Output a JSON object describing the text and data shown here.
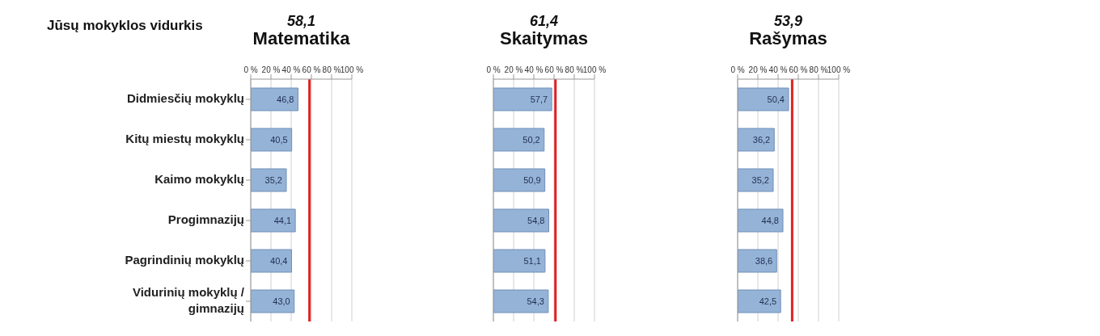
{
  "chart_data": [
    {
      "type": "bar",
      "orientation": "horizontal",
      "title": "Matematika",
      "subtitle": "58,1",
      "annotations": [
        "Jūsų mokyklos vidurkis"
      ],
      "categories": [
        "Didmiesčių mokyklų",
        "Kitų miestų mokyklų",
        "Kaimo mokyklų",
        "Progimnazijų",
        "Pagrindinių mokyklų",
        "Vidurinių mokyklų / gimnazijų"
      ],
      "values": [
        46.8,
        40.5,
        35.2,
        44.1,
        40.4,
        43.0
      ],
      "value_labels": [
        "46,8",
        "40,5",
        "35,2",
        "44,1",
        "40,4",
        "43,0"
      ],
      "color": "#95b3d7",
      "xlim": [
        0,
        100
      ],
      "xticks": [
        {
          "value": 0,
          "label": "0 %"
        },
        {
          "value": 20,
          "label": "20 %"
        },
        {
          "value": 40,
          "label": "40 %"
        },
        {
          "value": 60,
          "label": "60 %"
        },
        {
          "value": 80,
          "label": "80 %"
        },
        {
          "value": 100,
          "label": "100 %"
        }
      ],
      "grid": "x",
      "ref_lines": [
        {
          "axis": "x",
          "value": 58.1,
          "color": "#e02020"
        }
      ]
    },
    {
      "type": "bar",
      "orientation": "horizontal",
      "title": "Skaitymas",
      "subtitle": "61,4",
      "tick_labels": "x",
      "categories": [
        null,
        null,
        null,
        null,
        null,
        null
      ],
      "values": [
        57.7,
        50.2,
        50.9,
        54.8,
        51.1,
        54.3
      ],
      "value_labels": [
        "57,7",
        "50,2",
        "50,9",
        "54,8",
        "51,1",
        "54,3"
      ],
      "color": "#95b3d7",
      "xlim": [
        0,
        100
      ],
      "xticks": [
        {
          "value": 0,
          "label": "0 %"
        },
        {
          "value": 20,
          "label": "20 %"
        },
        {
          "value": 40,
          "label": "40 %"
        },
        {
          "value": 60,
          "label": "60 %"
        },
        {
          "value": 80,
          "label": "80 %"
        },
        {
          "value": 100,
          "label": "100 %"
        }
      ],
      "grid": "x",
      "ref_lines": [
        {
          "axis": "x",
          "value": 61.4,
          "color": "#e02020"
        }
      ]
    },
    {
      "type": "bar",
      "orientation": "horizontal",
      "title": "Rašymas",
      "subtitle": "53,9",
      "tick_labels": "x",
      "categories": [
        null,
        null,
        null,
        null,
        null,
        null
      ],
      "values": [
        50.4,
        36.2,
        35.2,
        44.8,
        38.6,
        42.5
      ],
      "value_labels": [
        "50,4",
        "36,2",
        "35,2",
        "44,8",
        "38,6",
        "42,5"
      ],
      "color": "#95b3d7",
      "xlim": [
        0,
        100
      ],
      "xticks": [
        {
          "value": 0,
          "label": "0 %"
        },
        {
          "value": 20,
          "label": "20 %"
        },
        {
          "value": 40,
          "label": "40 %"
        },
        {
          "value": 60,
          "label": "60 %"
        },
        {
          "value": 80,
          "label": "80 %"
        },
        {
          "value": 100,
          "label": "100 %"
        }
      ],
      "grid": "x",
      "ref_lines": [
        {
          "axis": "x",
          "value": 53.9,
          "color": "#e02020"
        }
      ]
    }
  ]
}
